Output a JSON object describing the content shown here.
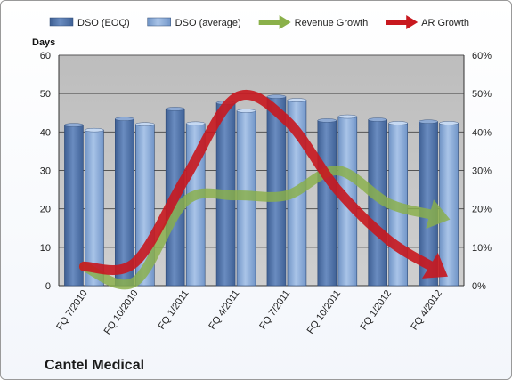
{
  "chart_data": {
    "type": "bar",
    "categories": [
      "FQ 7/2010",
      "FQ 10/2010",
      "FQ 1/2011",
      "FQ 4/2011",
      "FQ 7/2011",
      "FQ 10/2011",
      "FQ 1/2012",
      "FQ 4/2012"
    ],
    "ylabel": "Days",
    "ylim": [
      0,
      60
    ],
    "yticks": [
      "0",
      "10",
      "20",
      "30",
      "40",
      "50",
      "60"
    ],
    "y2lim": [
      0,
      0.6
    ],
    "y2ticks": [
      "0%",
      "10%",
      "20%",
      "30%",
      "40%",
      "50%",
      "60%"
    ],
    "legend_position": "top",
    "grid": true,
    "series": [
      {
        "name": "DSO (EOQ)",
        "type": "bar",
        "axis": "left",
        "color": "#5578ad",
        "values": [
          41.8,
          43.4,
          46.0,
          47.6,
          49.2,
          43.0,
          43.2,
          42.7
        ]
      },
      {
        "name": "DSO (average)",
        "type": "bar",
        "axis": "left",
        "color": "#8fb0dc",
        "values": [
          40.5,
          42.0,
          42.2,
          45.5,
          48.3,
          44.0,
          42.3,
          42.3
        ]
      },
      {
        "name": "Revenue Growth",
        "type": "line",
        "axis": "right",
        "color": "#8ab04a",
        "values": [
          0.05,
          0.01,
          0.22,
          0.235,
          0.235,
          0.3,
          0.215,
          0.185
        ]
      },
      {
        "name": "AR Growth",
        "type": "line",
        "axis": "right",
        "color": "#c8181f",
        "values": [
          0.05,
          0.06,
          0.28,
          0.49,
          0.43,
          0.25,
          0.12,
          0.05
        ]
      }
    ]
  },
  "company_name": "Cantel Medical"
}
